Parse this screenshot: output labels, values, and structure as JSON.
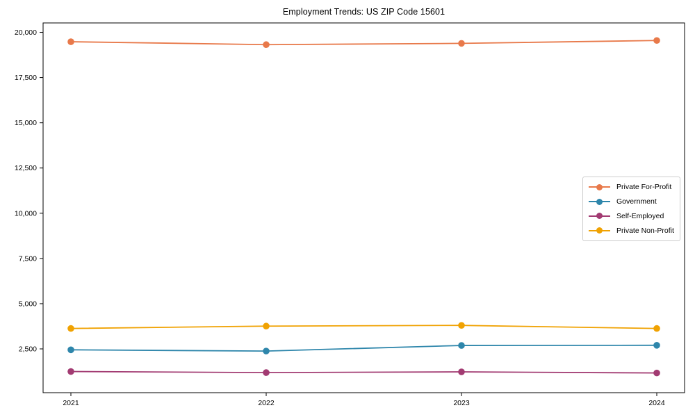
{
  "figure": {
    "title": "Employment Trends: US ZIP Code 15601"
  },
  "chart_data": {
    "type": "line",
    "title": "Employment Trends: US ZIP Code 15601",
    "x": [
      "2021",
      "2022",
      "2023",
      "2024"
    ],
    "xlabel": "",
    "ylabel": "",
    "ylim": [
      80,
      20520
    ],
    "yticks": [
      2500,
      5000,
      7500,
      10000,
      12500,
      15000,
      17500,
      20000
    ],
    "grid": false,
    "legend_position": "center-right",
    "marker": "circle",
    "series": [
      {
        "name": "Private For-Profit",
        "color": "#E8794A",
        "values": [
          19480,
          19320,
          19390,
          19550
        ]
      },
      {
        "name": "Government",
        "color": "#2E86AB",
        "values": [
          2450,
          2380,
          2690,
          2700
        ]
      },
      {
        "name": "Self-Employed",
        "color": "#A23B72",
        "values": [
          1250,
          1190,
          1230,
          1170
        ]
      },
      {
        "name": "Private Non-Profit",
        "color": "#F0A202",
        "values": [
          3630,
          3760,
          3800,
          3630
        ]
      }
    ]
  }
}
